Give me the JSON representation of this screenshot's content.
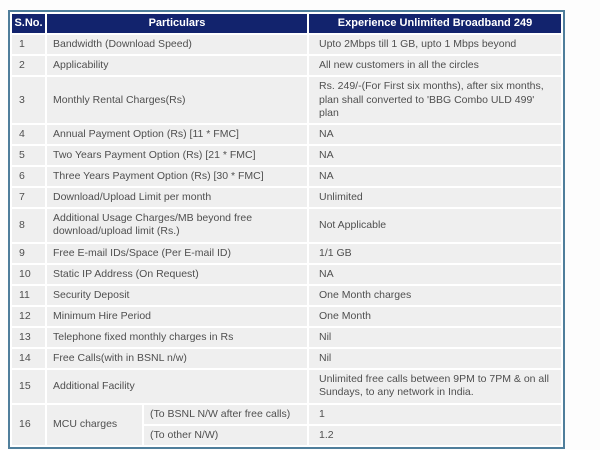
{
  "page": {
    "background": "#fdfdfd"
  },
  "table": {
    "colors": {
      "border": "#4f7e9b",
      "header_bg": "#12236d",
      "header_text": "#ffffff",
      "row_bg": "#efefef",
      "text": "#4f4f4f"
    },
    "columns": {
      "sno": "S.No.",
      "particulars": "Particulars",
      "plan": "Experience Unlimited Broadband 249"
    },
    "rows": [
      {
        "sno": "1",
        "particulars": "Bandwidth (Download Speed)",
        "value": "Upto 2Mbps till 1 GB, upto 1 Mbps beyond"
      },
      {
        "sno": "2",
        "particulars": "Applicability",
        "value": "All new customers in all the circles"
      },
      {
        "sno": "3",
        "particulars": "Monthly Rental Charges(Rs)",
        "value": "Rs. 249/-(For First six months), after six months, plan shall converted to 'BBG Combo ULD 499' plan"
      },
      {
        "sno": "4",
        "particulars": "Annual Payment Option (Rs) [11 * FMC]",
        "value": "NA"
      },
      {
        "sno": "5",
        "particulars": "Two Years Payment Option (Rs) [21 * FMC]",
        "value": "NA"
      },
      {
        "sno": "6",
        "particulars": "Three Years Payment Option (Rs) [30 * FMC]",
        "value": "NA"
      },
      {
        "sno": "7",
        "particulars": "Download/Upload Limit per month",
        "value": "Unlimited"
      },
      {
        "sno": "8",
        "particulars": "Additional Usage Charges/MB beyond free download/upload limit (Rs.)",
        "value": "Not Applicable"
      },
      {
        "sno": "9",
        "particulars": "Free E-mail IDs/Space (Per E-mail ID)",
        "value": "1/1 GB"
      },
      {
        "sno": "10",
        "particulars": "Static IP Address (On Request)",
        "value": "NA"
      },
      {
        "sno": "11",
        "particulars": "Security Deposit",
        "value": "One Month charges"
      },
      {
        "sno": "12",
        "particulars": "Minimum Hire Period",
        "value": "One Month"
      },
      {
        "sno": "13",
        "particulars": "Telephone fixed monthly charges in Rs",
        "value": "Nil"
      },
      {
        "sno": "14",
        "particulars": "Free Calls(with in BSNL n/w)",
        "value": "Nil"
      },
      {
        "sno": "15",
        "particulars": "Additional Facility",
        "value": "Unlimited free calls between 9PM to 7PM & on all Sundays, to any network in India."
      },
      {
        "sno": "16",
        "particulars": "MCU charges",
        "subrows": [
          {
            "label": "(To BSNL N/W after free calls)",
            "value": "1"
          },
          {
            "label": "(To other N/W)",
            "value": "1.2"
          }
        ]
      }
    ]
  }
}
